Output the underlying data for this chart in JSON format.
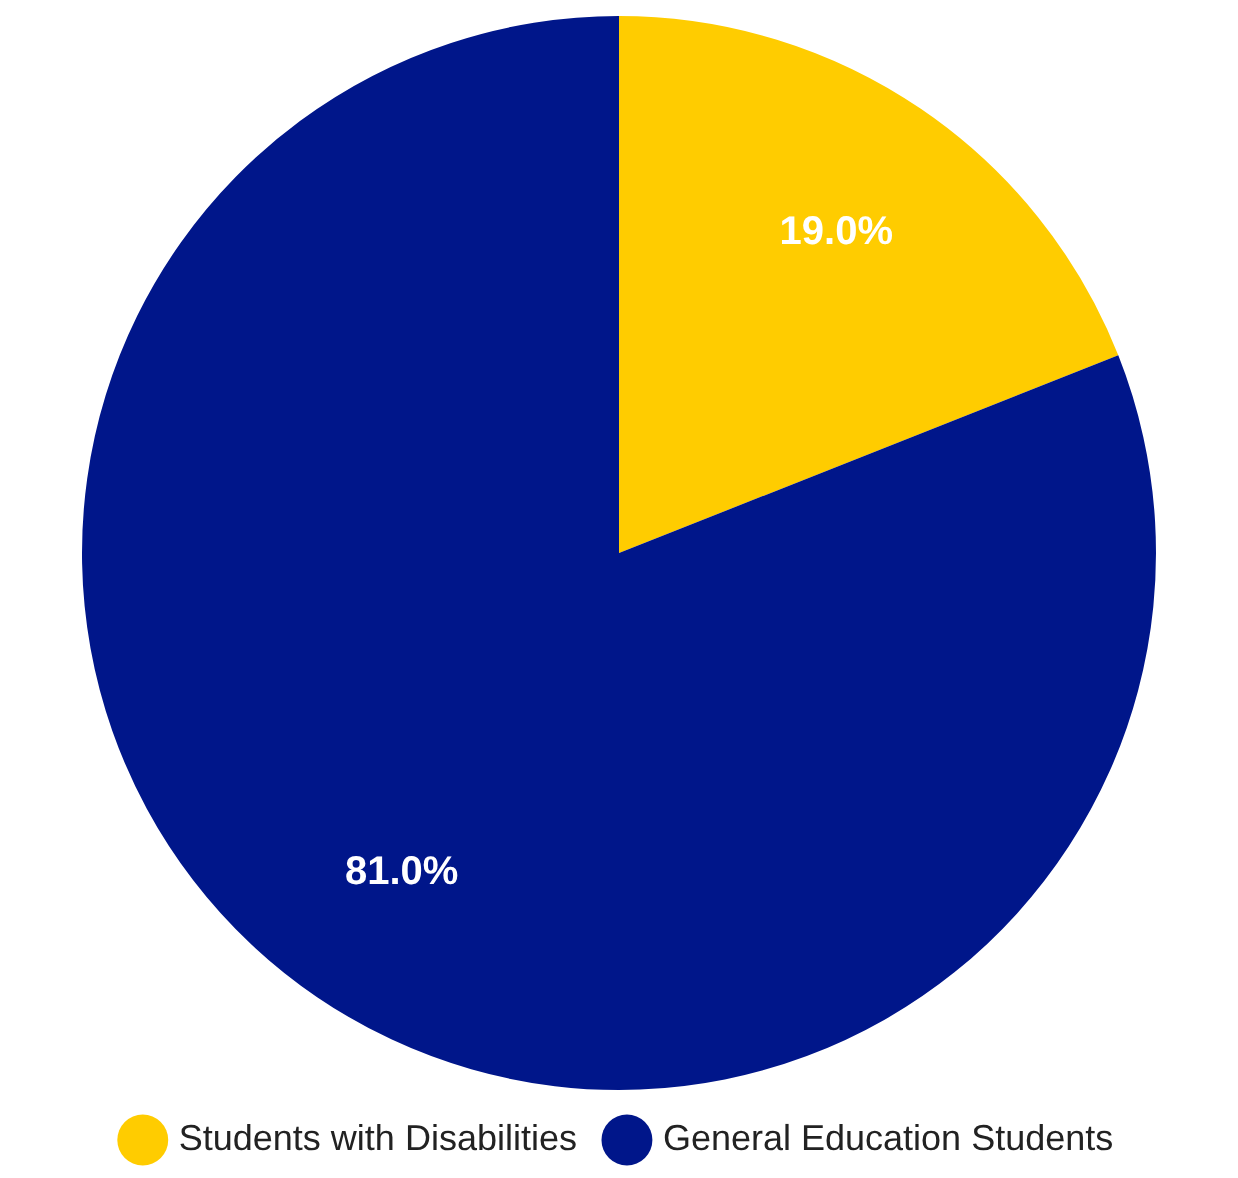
{
  "chart_data": {
    "type": "pie",
    "categories": [
      "Students with Disabilities",
      "General Education Students"
    ],
    "values": [
      19.0,
      81.0
    ],
    "colors": [
      "#ffcc00",
      "#00168a"
    ],
    "value_labels": [
      "19.0%",
      "81.0%"
    ],
    "legend": "bottom"
  }
}
